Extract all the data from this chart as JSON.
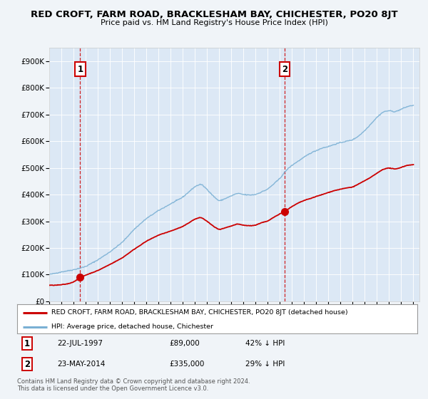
{
  "title": "RED CROFT, FARM ROAD, BRACKLESHAM BAY, CHICHESTER, PO20 8JT",
  "subtitle": "Price paid vs. HM Land Registry's House Price Index (HPI)",
  "background_color": "#f0f4f8",
  "plot_bg_color": "#dce8f5",
  "ylim": [
    0,
    950000
  ],
  "yticks": [
    0,
    100000,
    200000,
    300000,
    400000,
    500000,
    600000,
    700000,
    800000,
    900000
  ],
  "ytick_labels": [
    "£0",
    "£100K",
    "£200K",
    "£300K",
    "£400K",
    "£500K",
    "£600K",
    "£700K",
    "£800K",
    "£900K"
  ],
  "sale1_date": 1997.55,
  "sale1_price": 89000,
  "sale2_date": 2014.39,
  "sale2_price": 335000,
  "red_line_color": "#cc0000",
  "blue_line_color": "#7ab0d4",
  "dashed_vline_color": "#cc0000",
  "legend_red_label": "RED CROFT, FARM ROAD, BRACKLESHAM BAY, CHICHESTER, PO20 8JT (detached house)",
  "legend_blue_label": "HPI: Average price, detached house, Chichester",
  "annotation1_label": "1",
  "annotation2_label": "2",
  "table_row1": [
    "1",
    "22-JUL-1997",
    "£89,000",
    "42% ↓ HPI"
  ],
  "table_row2": [
    "2",
    "23-MAY-2014",
    "£335,000",
    "29% ↓ HPI"
  ],
  "footer": "Contains HM Land Registry data © Crown copyright and database right 2024.\nThis data is licensed under the Open Government Licence v3.0."
}
